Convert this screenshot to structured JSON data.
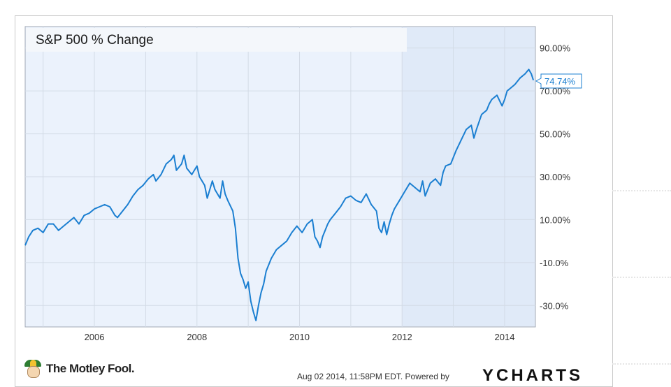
{
  "chart_data": {
    "type": "line",
    "title": "S&P 500 % Change",
    "xlabel": "",
    "ylabel": "",
    "x_tick_labels": [
      "2006",
      "2008",
      "2010",
      "2012",
      "2014"
    ],
    "x_ticks": [
      2006,
      2008,
      2010,
      2012,
      2014
    ],
    "xlim": [
      2004.65,
      2014.6
    ],
    "y_tick_labels": [
      "90.00%",
      "70.00%",
      "50.00%",
      "30.00%",
      "10.00%",
      "-10.0%",
      "-30.0%"
    ],
    "y_ticks": [
      90,
      70,
      50,
      30,
      10,
      -10,
      -30
    ],
    "ylim": [
      -40,
      100
    ],
    "grid": true,
    "last_value_label": "74.74%",
    "colors": {
      "line": "#1b7fd1",
      "plot_bg": "#ebf2fc",
      "plot_bg_recent": "#e0eaf8",
      "grid": "#d3dbe6",
      "frame": "#a0a8b4",
      "text": "#333333"
    },
    "series": [
      {
        "x": [
          2004.65,
          2004.72,
          2004.8,
          2004.9,
          2005.0,
          2005.1,
          2005.2,
          2005.3,
          2005.4,
          2005.5,
          2005.6,
          2005.7,
          2005.8,
          2005.9,
          2006.0,
          2006.1,
          2006.2,
          2006.3,
          2006.4,
          2006.45,
          2006.55,
          2006.65,
          2006.75,
          2006.85,
          2006.95,
          2007.05,
          2007.15,
          2007.2,
          2007.3,
          2007.4,
          2007.5,
          2007.55,
          2007.6,
          2007.7,
          2007.75,
          2007.8,
          2007.9,
          2008.0,
          2008.05,
          2008.15,
          2008.2,
          2008.3,
          2008.35,
          2008.45,
          2008.5,
          2008.55,
          2008.6,
          2008.7,
          2008.75,
          2008.8,
          2008.85,
          2008.9,
          2008.95,
          2009.0,
          2009.05,
          2009.1,
          2009.15,
          2009.2,
          2009.25,
          2009.3,
          2009.35,
          2009.45,
          2009.55,
          2009.65,
          2009.75,
          2009.85,
          2009.95,
          2010.05,
          2010.15,
          2010.25,
          2010.3,
          2010.35,
          2010.4,
          2010.45,
          2010.55,
          2010.6,
          2010.7,
          2010.8,
          2010.9,
          2011.0,
          2011.1,
          2011.2,
          2011.3,
          2011.4,
          2011.5,
          2011.55,
          2011.6,
          2011.65,
          2011.7,
          2011.75,
          2011.8,
          2011.85,
          2011.95,
          2012.05,
          2012.15,
          2012.25,
          2012.35,
          2012.4,
          2012.45,
          2012.55,
          2012.65,
          2012.75,
          2012.8,
          2012.85,
          2012.95,
          2013.05,
          2013.15,
          2013.25,
          2013.35,
          2013.4,
          2013.45,
          2013.55,
          2013.65,
          2013.7,
          2013.75,
          2013.85,
          2013.95,
          2014.0,
          2014.05,
          2014.1,
          2014.2,
          2014.3,
          2014.4,
          2014.47,
          2014.52,
          2014.56
        ],
        "y": [
          -2,
          2,
          5,
          6,
          4,
          8,
          8,
          5,
          7,
          9,
          11,
          8,
          12,
          13,
          15,
          16,
          17,
          16,
          12,
          11,
          14,
          17,
          21,
          24,
          26,
          29,
          31,
          28,
          31,
          36,
          38,
          40,
          33,
          36,
          40,
          34,
          31,
          35,
          30,
          26,
          20,
          28,
          24,
          20,
          28,
          22,
          19,
          14,
          6,
          -8,
          -15,
          -18,
          -22,
          -19,
          -28,
          -33,
          -37,
          -30,
          -24,
          -20,
          -14,
          -8,
          -4,
          -2,
          0,
          4,
          7,
          4,
          8,
          10,
          2,
          0,
          -3,
          2,
          8,
          10,
          13,
          16,
          20,
          21,
          19,
          18,
          22,
          17,
          14,
          6,
          4,
          9,
          3,
          8,
          12,
          15,
          19,
          23,
          27,
          25,
          23,
          28,
          21,
          27,
          29,
          26,
          32,
          35,
          36,
          42,
          47,
          52,
          54,
          48,
          52,
          59,
          61,
          64,
          66,
          68,
          63,
          66,
          70,
          71,
          73,
          76,
          78,
          80,
          78,
          75
        ]
      }
    ]
  },
  "footer": {
    "brand": "The Motley Fool.",
    "timestamp": "Aug 02 2014, 11:58PM EDT.  Powered by",
    "provider": "YCHARTS"
  }
}
